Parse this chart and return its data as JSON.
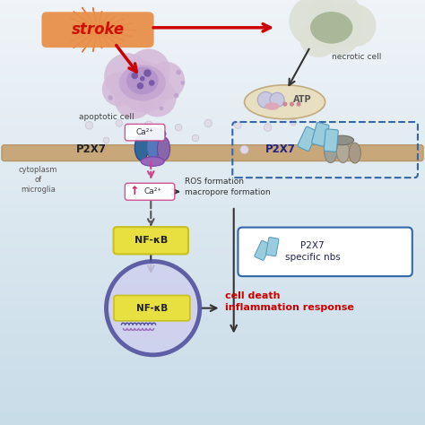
{
  "bg_top": "#f0f4f8",
  "bg_bottom": "#c8dce8",
  "title_text": "stroke",
  "title_color": "#cc1100",
  "title_bg": "#e8904a",
  "title_burst": "#e87030",
  "necrotic_cell_text": "necrotic cell",
  "apoptotic_cell_text": "apoptotic cell",
  "atp_text": "ATP",
  "p2x7_left_text": "P2X7",
  "p2x7_right_text": "P2X7",
  "cytoplasm_text": "cytoplasm\nof\nmicroglia",
  "ca2plus_text": "Ca²⁺",
  "ros_text": "ROS formation\nmacropore formation",
  "nfkb_text": "NF-κB",
  "nfkb2_text": "NF-κB",
  "cell_death_text": "cell death\ninflammation response",
  "p2x7_nbs_text": "P2X7\nspecific nbs",
  "membrane_color": "#c8a87a",
  "membrane_edge": "#b09060",
  "arrow_red": "#cc0000",
  "arrow_dark": "#333333",
  "arrow_pink": "#cc4488",
  "nfkb_box_color": "#e8e040",
  "nfkb_edge_color": "#c8c020",
  "nucleus_color": "#4a4a99",
  "nucleus_fill": "#7878bb",
  "dashed_box_color": "#3366aa",
  "nbs_box_color": "#3366aa",
  "apo_outer": "#d4b8d8",
  "apo_inner": "#b898c8",
  "apo_nucleus": "#a080b8",
  "apo_dots": "#7050a0",
  "necrotic_outer": "#dde0d5",
  "necrotic_inner": "#a8b898",
  "atp_bg": "#e8dfc0",
  "atp_dots_color": "#cc8899",
  "atp_circle_color": "#c8c8e0",
  "ca_box_edge": "#cc4488",
  "float_circle": "#d8d0dc"
}
